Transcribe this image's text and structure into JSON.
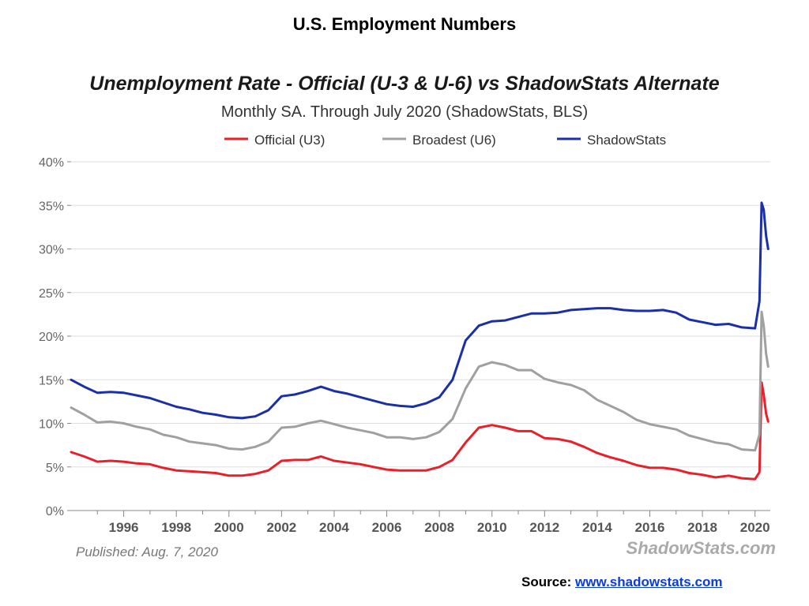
{
  "page": {
    "title": "U.S. Employment Numbers",
    "source_label": "Source:",
    "source_url": "www.shadowstats.com"
  },
  "chart_data": {
    "type": "line",
    "title": "Unemployment Rate - Official (U-3 & U-6) vs ShadowStats Alternate",
    "subtitle": "Monthly SA. Through July 2020  (ShadowStats, BLS)",
    "published": "Published: Aug. 7, 2020",
    "watermark": "ShadowStats.com",
    "xlim": [
      1994.0,
      2020.58
    ],
    "ylim": [
      0,
      40
    ],
    "y_ticks": [
      0,
      5,
      10,
      15,
      20,
      25,
      30,
      35,
      40
    ],
    "y_tick_labels": [
      "0%",
      "5%",
      "10%",
      "15%",
      "20%",
      "25%",
      "30%",
      "35%",
      "40%"
    ],
    "x_ticks": [
      1996,
      1998,
      2000,
      2002,
      2004,
      2006,
      2008,
      2010,
      2012,
      2014,
      2016,
      2018,
      2020
    ],
    "x_tick_labels": [
      "1996",
      "1998",
      "2000",
      "2002",
      "2004",
      "2006",
      "2008",
      "2010",
      "2012",
      "2014",
      "2016",
      "2018",
      "2020"
    ],
    "grid": true,
    "legend_position": "top",
    "series": [
      {
        "name": "Official (U3)",
        "color": "#e8202a",
        "points": [
          [
            1994.0,
            6.7
          ],
          [
            1994.5,
            6.2
          ],
          [
            1995.0,
            5.6
          ],
          [
            1995.5,
            5.7
          ],
          [
            1996.0,
            5.6
          ],
          [
            1996.5,
            5.4
          ],
          [
            1997.0,
            5.3
          ],
          [
            1997.5,
            4.9
          ],
          [
            1998.0,
            4.6
          ],
          [
            1998.5,
            4.5
          ],
          [
            1999.0,
            4.4
          ],
          [
            1999.5,
            4.3
          ],
          [
            2000.0,
            4.0
          ],
          [
            2000.5,
            4.0
          ],
          [
            2001.0,
            4.2
          ],
          [
            2001.5,
            4.6
          ],
          [
            2002.0,
            5.7
          ],
          [
            2002.5,
            5.8
          ],
          [
            2003.0,
            5.8
          ],
          [
            2003.5,
            6.2
          ],
          [
            2004.0,
            5.7
          ],
          [
            2004.5,
            5.5
          ],
          [
            2005.0,
            5.3
          ],
          [
            2005.5,
            5.0
          ],
          [
            2006.0,
            4.7
          ],
          [
            2006.5,
            4.6
          ],
          [
            2007.0,
            4.6
          ],
          [
            2007.5,
            4.6
          ],
          [
            2008.0,
            5.0
          ],
          [
            2008.5,
            5.8
          ],
          [
            2009.0,
            7.8
          ],
          [
            2009.5,
            9.5
          ],
          [
            2010.0,
            9.8
          ],
          [
            2010.5,
            9.5
          ],
          [
            2011.0,
            9.1
          ],
          [
            2011.5,
            9.1
          ],
          [
            2012.0,
            8.3
          ],
          [
            2012.5,
            8.2
          ],
          [
            2013.0,
            7.9
          ],
          [
            2013.5,
            7.3
          ],
          [
            2014.0,
            6.6
          ],
          [
            2014.5,
            6.1
          ],
          [
            2015.0,
            5.7
          ],
          [
            2015.5,
            5.2
          ],
          [
            2016.0,
            4.9
          ],
          [
            2016.5,
            4.9
          ],
          [
            2017.0,
            4.7
          ],
          [
            2017.5,
            4.3
          ],
          [
            2018.0,
            4.1
          ],
          [
            2018.5,
            3.8
          ],
          [
            2019.0,
            4.0
          ],
          [
            2019.5,
            3.7
          ],
          [
            2020.0,
            3.6
          ],
          [
            2020.17,
            4.4
          ],
          [
            2020.25,
            14.7
          ],
          [
            2020.33,
            13.3
          ],
          [
            2020.42,
            11.1
          ],
          [
            2020.5,
            10.2
          ]
        ]
      },
      {
        "name": "Broadest (U6)",
        "color": "#a0a0a0",
        "points": [
          [
            1994.0,
            11.8
          ],
          [
            1994.5,
            11.0
          ],
          [
            1995.0,
            10.1
          ],
          [
            1995.5,
            10.2
          ],
          [
            1996.0,
            10.0
          ],
          [
            1996.5,
            9.6
          ],
          [
            1997.0,
            9.3
          ],
          [
            1997.5,
            8.7
          ],
          [
            1998.0,
            8.4
          ],
          [
            1998.5,
            7.9
          ],
          [
            1999.0,
            7.7
          ],
          [
            1999.5,
            7.5
          ],
          [
            2000.0,
            7.1
          ],
          [
            2000.5,
            7.0
          ],
          [
            2001.0,
            7.3
          ],
          [
            2001.5,
            7.9
          ],
          [
            2002.0,
            9.5
          ],
          [
            2002.5,
            9.6
          ],
          [
            2003.0,
            10.0
          ],
          [
            2003.5,
            10.3
          ],
          [
            2004.0,
            9.9
          ],
          [
            2004.5,
            9.5
          ],
          [
            2005.0,
            9.2
          ],
          [
            2005.5,
            8.9
          ],
          [
            2006.0,
            8.4
          ],
          [
            2006.5,
            8.4
          ],
          [
            2007.0,
            8.2
          ],
          [
            2007.5,
            8.4
          ],
          [
            2008.0,
            9.0
          ],
          [
            2008.5,
            10.5
          ],
          [
            2009.0,
            14.0
          ],
          [
            2009.5,
            16.5
          ],
          [
            2010.0,
            17.0
          ],
          [
            2010.5,
            16.7
          ],
          [
            2011.0,
            16.1
          ],
          [
            2011.5,
            16.1
          ],
          [
            2012.0,
            15.1
          ],
          [
            2012.5,
            14.7
          ],
          [
            2013.0,
            14.4
          ],
          [
            2013.5,
            13.8
          ],
          [
            2014.0,
            12.7
          ],
          [
            2014.5,
            12.0
          ],
          [
            2015.0,
            11.3
          ],
          [
            2015.5,
            10.4
          ],
          [
            2016.0,
            9.9
          ],
          [
            2016.5,
            9.6
          ],
          [
            2017.0,
            9.3
          ],
          [
            2017.5,
            8.6
          ],
          [
            2018.0,
            8.2
          ],
          [
            2018.5,
            7.8
          ],
          [
            2019.0,
            7.6
          ],
          [
            2019.5,
            7.0
          ],
          [
            2020.0,
            6.9
          ],
          [
            2020.17,
            8.7
          ],
          [
            2020.25,
            22.8
          ],
          [
            2020.33,
            21.2
          ],
          [
            2020.42,
            18.0
          ],
          [
            2020.5,
            16.5
          ]
        ]
      },
      {
        "name": "ShadowStats",
        "color": "#1a2fa8",
        "points": [
          [
            1994.0,
            15.0
          ],
          [
            1994.5,
            14.2
          ],
          [
            1995.0,
            13.5
          ],
          [
            1995.5,
            13.6
          ],
          [
            1996.0,
            13.5
          ],
          [
            1996.5,
            13.2
          ],
          [
            1997.0,
            12.9
          ],
          [
            1997.5,
            12.4
          ],
          [
            1998.0,
            11.9
          ],
          [
            1998.5,
            11.6
          ],
          [
            1999.0,
            11.2
          ],
          [
            1999.5,
            11.0
          ],
          [
            2000.0,
            10.7
          ],
          [
            2000.5,
            10.6
          ],
          [
            2001.0,
            10.8
          ],
          [
            2001.5,
            11.5
          ],
          [
            2002.0,
            13.1
          ],
          [
            2002.5,
            13.3
          ],
          [
            2003.0,
            13.7
          ],
          [
            2003.5,
            14.2
          ],
          [
            2004.0,
            13.7
          ],
          [
            2004.5,
            13.4
          ],
          [
            2005.0,
            13.0
          ],
          [
            2005.5,
            12.6
          ],
          [
            2006.0,
            12.2
          ],
          [
            2006.5,
            12.0
          ],
          [
            2007.0,
            11.9
          ],
          [
            2007.5,
            12.3
          ],
          [
            2008.0,
            13.0
          ],
          [
            2008.5,
            15.0
          ],
          [
            2009.0,
            19.5
          ],
          [
            2009.5,
            21.2
          ],
          [
            2010.0,
            21.7
          ],
          [
            2010.5,
            21.8
          ],
          [
            2011.0,
            22.2
          ],
          [
            2011.5,
            22.6
          ],
          [
            2012.0,
            22.6
          ],
          [
            2012.5,
            22.7
          ],
          [
            2013.0,
            23.0
          ],
          [
            2013.5,
            23.1
          ],
          [
            2014.0,
            23.2
          ],
          [
            2014.5,
            23.2
          ],
          [
            2015.0,
            23.0
          ],
          [
            2015.5,
            22.9
          ],
          [
            2016.0,
            22.9
          ],
          [
            2016.5,
            23.0
          ],
          [
            2017.0,
            22.7
          ],
          [
            2017.5,
            21.9
          ],
          [
            2018.0,
            21.6
          ],
          [
            2018.5,
            21.3
          ],
          [
            2019.0,
            21.4
          ],
          [
            2019.5,
            21.0
          ],
          [
            2020.0,
            20.9
          ],
          [
            2020.17,
            24.0
          ],
          [
            2020.25,
            35.3
          ],
          [
            2020.33,
            34.5
          ],
          [
            2020.42,
            31.5
          ],
          [
            2020.5,
            30.0
          ]
        ]
      }
    ]
  }
}
